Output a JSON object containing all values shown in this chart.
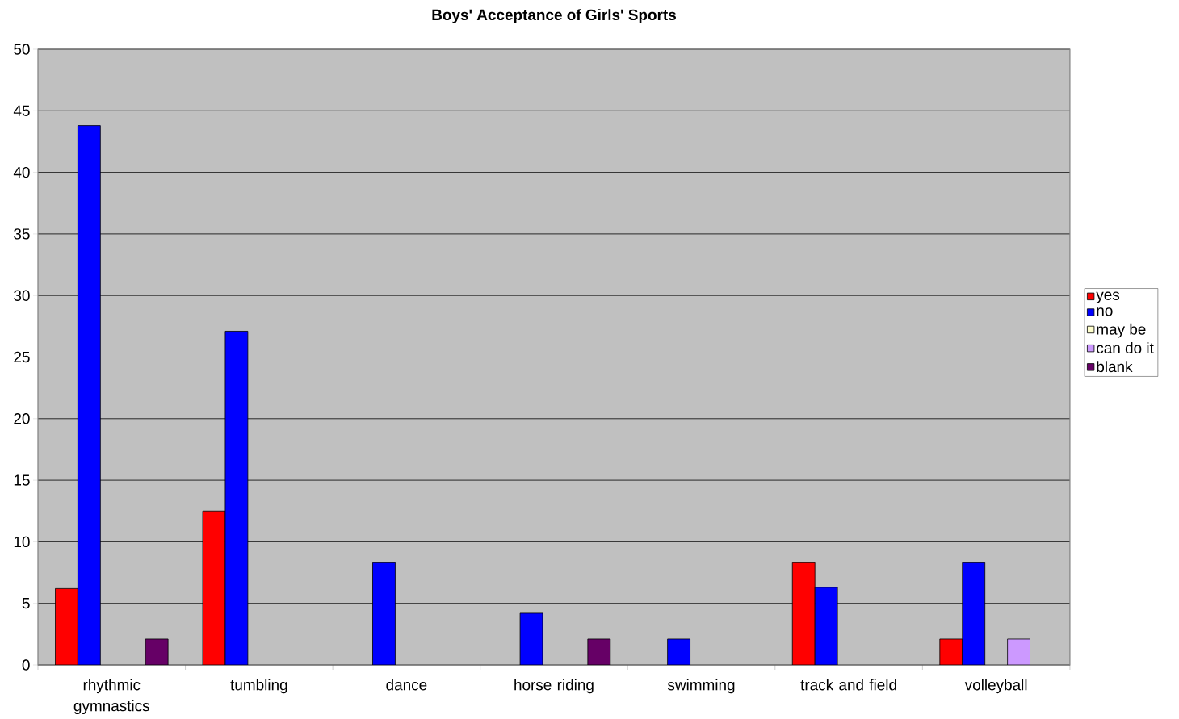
{
  "chart_data": {
    "type": "bar",
    "title": "Boys' Acceptance of Girls' Sports",
    "categories": [
      "rhythmic gymnastics",
      "tumbling",
      "dance",
      "horse riding",
      "swimming",
      "track and field",
      "volleyball"
    ],
    "series": [
      {
        "name": "yes",
        "color": "#ff0000",
        "values": [
          6.2,
          12.5,
          null,
          null,
          null,
          8.3,
          2.1
        ]
      },
      {
        "name": "no",
        "color": "#0000ff",
        "values": [
          43.8,
          27.1,
          8.3,
          4.2,
          2.1,
          6.3,
          8.3
        ]
      },
      {
        "name": "may be",
        "color": "#ffffcc",
        "values": [
          null,
          null,
          null,
          null,
          null,
          null,
          null
        ]
      },
      {
        "name": "can do it",
        "color": "#cc99ff",
        "values": [
          null,
          null,
          null,
          null,
          null,
          null,
          2.1
        ]
      },
      {
        "name": "blank",
        "color": "#660066",
        "values": [
          2.1,
          null,
          null,
          2.1,
          null,
          null,
          null
        ]
      }
    ],
    "ylim": [
      0,
      50
    ],
    "yticks": [
      0,
      5,
      10,
      15,
      20,
      25,
      30,
      35,
      40,
      45,
      50
    ],
    "grid": "y",
    "legend": "right"
  }
}
